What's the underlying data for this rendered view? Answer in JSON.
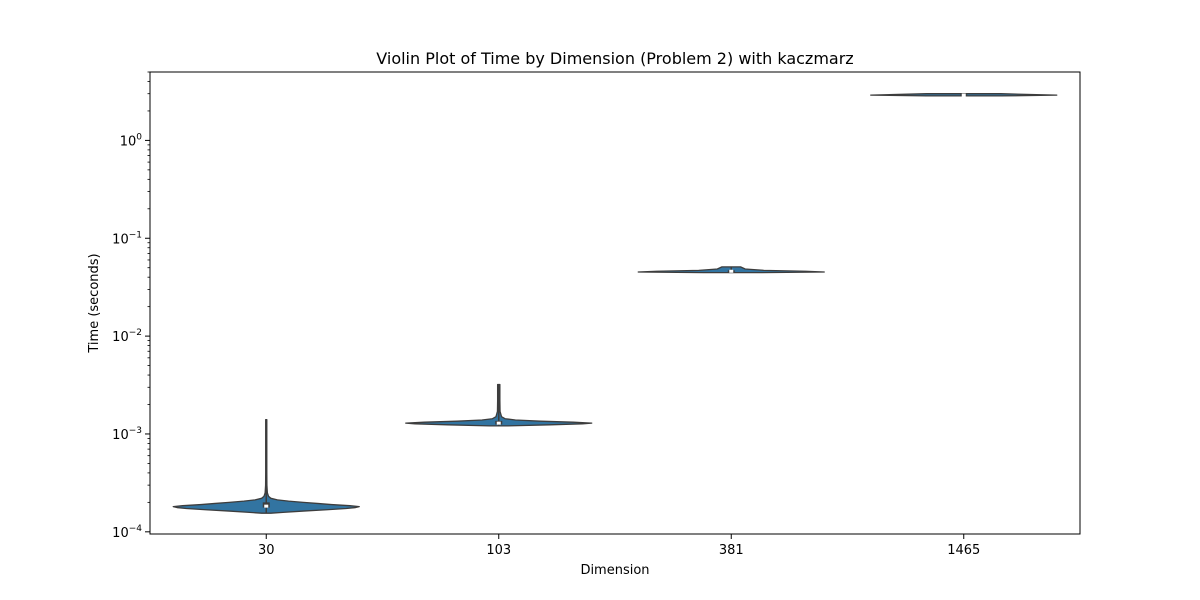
{
  "chart_data": {
    "type": "violin",
    "title": "Violin Plot of Time by Dimension (Problem 2) with kaczmarz",
    "xlabel": "Dimension",
    "ylabel": "Time (seconds)",
    "yscale": "log",
    "ylim": [
      9.5e-05,
      5
    ],
    "y_ticks": [
      {
        "value": 0.0001,
        "base": "10",
        "exp": "−4"
      },
      {
        "value": 0.001,
        "base": "10",
        "exp": "−3"
      },
      {
        "value": 0.01,
        "base": "10",
        "exp": "−2"
      },
      {
        "value": 0.1,
        "base": "10",
        "exp": "−1"
      },
      {
        "value": 1,
        "base": "10",
        "exp": "0"
      }
    ],
    "categories": [
      "30",
      "103",
      "381",
      "1465"
    ],
    "fill_color": "#3274a1",
    "edge_color": "#3d3d3d",
    "violins": [
      {
        "category": "30",
        "min": 0.000155,
        "q1": 0.000177,
        "median": 0.000183,
        "q3": 0.0002,
        "max": 0.0014,
        "profile": [
          [
            0.000155,
            0.05
          ],
          [
            0.000158,
            0.18
          ],
          [
            0.000163,
            0.4
          ],
          [
            0.000168,
            0.65
          ],
          [
            0.000173,
            0.86
          ],
          [
            0.000177,
            0.96
          ],
          [
            0.000181,
            1.0
          ],
          [
            0.000185,
            0.9
          ],
          [
            0.00019,
            0.7
          ],
          [
            0.000195,
            0.55
          ],
          [
            0.0002,
            0.4
          ],
          [
            0.000206,
            0.24
          ],
          [
            0.000212,
            0.12
          ],
          [
            0.00022,
            0.05
          ],
          [
            0.00023,
            0.025
          ],
          [
            0.00025,
            0.012
          ],
          [
            0.0003,
            0.007
          ],
          [
            0.0004,
            0.006
          ],
          [
            0.0007,
            0.006
          ],
          [
            0.0014,
            0.006
          ]
        ]
      },
      {
        "category": "103",
        "min": 0.00121,
        "q1": 0.00125,
        "median": 0.00129,
        "q3": 0.00136,
        "max": 0.0032,
        "profile": [
          [
            0.00121,
            0.1
          ],
          [
            0.00124,
            0.55
          ],
          [
            0.00127,
            0.9
          ],
          [
            0.00129,
            1.0
          ],
          [
            0.00132,
            0.8
          ],
          [
            0.00135,
            0.45
          ],
          [
            0.00139,
            0.18
          ],
          [
            0.00143,
            0.07
          ],
          [
            0.0015,
            0.03
          ],
          [
            0.0017,
            0.014
          ],
          [
            0.0022,
            0.012
          ],
          [
            0.0032,
            0.012
          ]
        ]
      },
      {
        "category": "381",
        "min": 0.0445,
        "q1": 0.0452,
        "median": 0.046,
        "q3": 0.047,
        "max": 0.051,
        "profile": [
          [
            0.0445,
            0.3
          ],
          [
            0.0452,
            1.0
          ],
          [
            0.046,
            0.8
          ],
          [
            0.047,
            0.35
          ],
          [
            0.0485,
            0.15
          ],
          [
            0.051,
            0.1
          ]
        ]
      },
      {
        "category": "1465",
        "min": 2.85,
        "q1": 2.88,
        "median": 2.91,
        "q3": 2.95,
        "max": 3.0,
        "profile": [
          [
            2.85,
            0.4
          ],
          [
            2.9,
            1.0
          ],
          [
            3.0,
            0.4
          ]
        ]
      }
    ]
  }
}
